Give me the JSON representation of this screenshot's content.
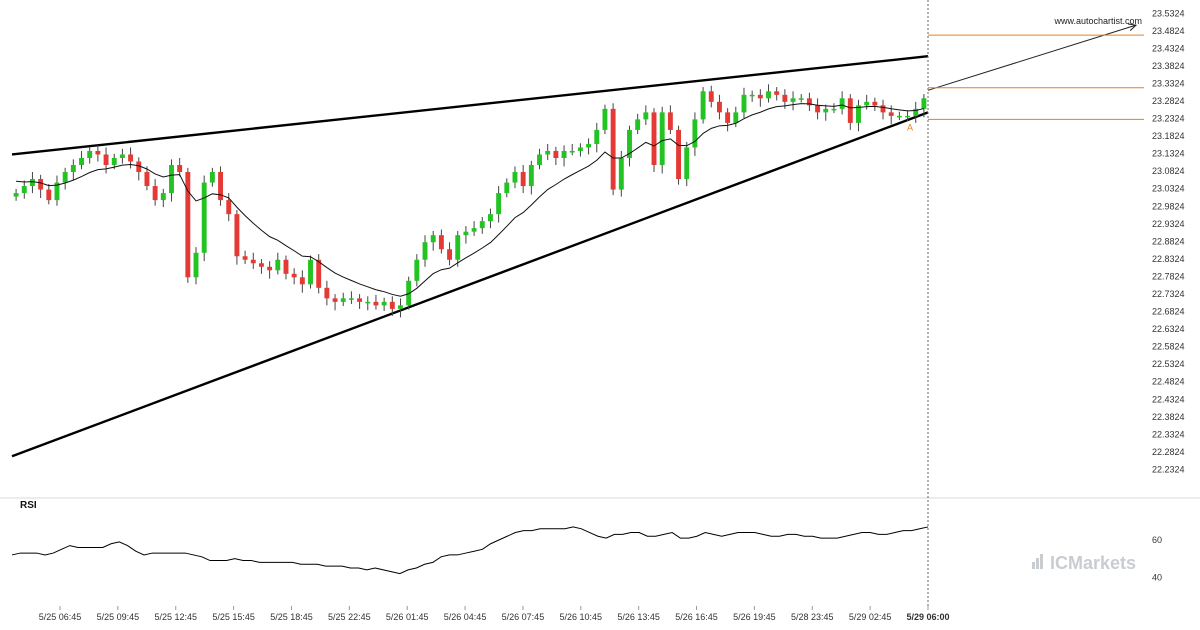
{
  "chart_data": {
    "type": "candlestick",
    "watermark_url": "www.autochartist.com",
    "brand": "ICMarkets",
    "y_axis": {
      "ylim": [
        22.2024,
        23.5474
      ],
      "ticks": [
        "23.5324",
        "23.4824",
        "23.4324",
        "23.3824",
        "23.3324",
        "23.2824",
        "23.2324",
        "23.1824",
        "23.1324",
        "23.0824",
        "23.0324",
        "22.9824",
        "22.9324",
        "22.8824",
        "22.8324",
        "22.7824",
        "22.7324",
        "22.6824",
        "22.6324",
        "22.5824",
        "22.5324",
        "22.4824",
        "22.4324",
        "22.3824",
        "22.3324",
        "22.2824",
        "22.2324"
      ]
    },
    "x_axis": {
      "ticks": [
        "5/25 06:45",
        "5/25 09:45",
        "5/25 12:45",
        "5/25 15:45",
        "5/25 18:45",
        "5/25 22:45",
        "5/26 01:45",
        "5/26 04:45",
        "5/26 07:45",
        "5/26 10:45",
        "5/26 13:45",
        "5/26 16:45",
        "5/26 19:45",
        "5/28 23:45",
        "5/29 02:45",
        "5/29 06:00"
      ],
      "highlight": "5/29 06:00"
    },
    "closes": [
      23.02,
      23.04,
      23.06,
      23.03,
      23.0,
      23.05,
      23.08,
      23.1,
      23.12,
      23.14,
      23.13,
      23.1,
      23.12,
      23.13,
      23.11,
      23.08,
      23.04,
      23.0,
      23.02,
      23.1,
      23.08,
      22.78,
      22.85,
      23.05,
      23.08,
      23.0,
      22.96,
      22.84,
      22.83,
      22.82,
      22.81,
      22.8,
      22.83,
      22.79,
      22.78,
      22.76,
      22.83,
      22.75,
      22.72,
      22.71,
      22.72,
      22.72,
      22.71,
      22.71,
      22.7,
      22.71,
      22.69,
      22.7,
      22.77,
      22.83,
      22.88,
      22.9,
      22.86,
      22.83,
      22.9,
      22.91,
      22.92,
      22.94,
      22.96,
      23.02,
      23.05,
      23.08,
      23.04,
      23.1,
      23.13,
      23.14,
      23.12,
      23.14,
      23.14,
      23.15,
      23.16,
      23.2,
      23.26,
      23.03,
      23.12,
      23.2,
      23.23,
      23.25,
      23.1,
      23.25,
      23.2,
      23.06,
      23.15,
      23.23,
      23.31,
      23.28,
      23.25,
      23.22,
      23.25,
      23.3,
      23.3,
      23.29,
      23.31,
      23.3,
      23.28,
      23.29,
      23.29,
      23.27,
      23.25,
      23.26,
      23.26,
      23.29,
      23.22,
      23.27,
      23.28,
      23.27,
      23.25,
      23.24,
      23.24,
      23.24,
      23.26,
      23.29
    ],
    "ma_start": 23.06,
    "trendlines": {
      "upper": {
        "start": 23.13,
        "end": 23.41
      },
      "lower": {
        "start": 22.27,
        "end": 23.25
      }
    },
    "price_levels": [
      23.47,
      23.32,
      23.23
    ],
    "projection_target": 23.47,
    "point_label": "A",
    "rsi": {
      "label": "RSI",
      "ticks": [
        "60",
        "40"
      ],
      "ylim": [
        30,
        75
      ],
      "values": [
        52,
        53,
        53,
        53,
        52,
        53,
        55,
        57,
        56,
        56,
        56,
        56,
        58,
        59,
        57,
        54,
        52,
        53,
        53,
        53,
        53,
        53,
        52,
        51,
        49,
        49,
        49,
        50,
        49,
        49,
        48,
        48,
        48,
        48,
        48,
        47,
        47,
        47,
        46,
        46,
        46,
        45,
        45,
        44,
        45,
        44,
        43,
        42,
        44,
        45,
        47,
        48,
        51,
        52,
        52,
        53,
        54,
        55,
        58,
        60,
        62,
        64,
        65,
        65,
        66,
        66,
        66,
        66,
        67,
        66,
        64,
        62,
        61,
        63,
        63,
        64,
        64,
        62,
        62,
        63,
        64,
        61,
        61,
        62,
        64,
        63,
        62,
        63,
        64,
        64,
        64,
        63,
        62,
        62,
        63,
        63,
        62,
        62,
        61,
        61,
        61,
        62,
        63,
        64,
        64,
        63,
        63,
        64,
        65,
        65,
        66,
        67
      ]
    }
  }
}
